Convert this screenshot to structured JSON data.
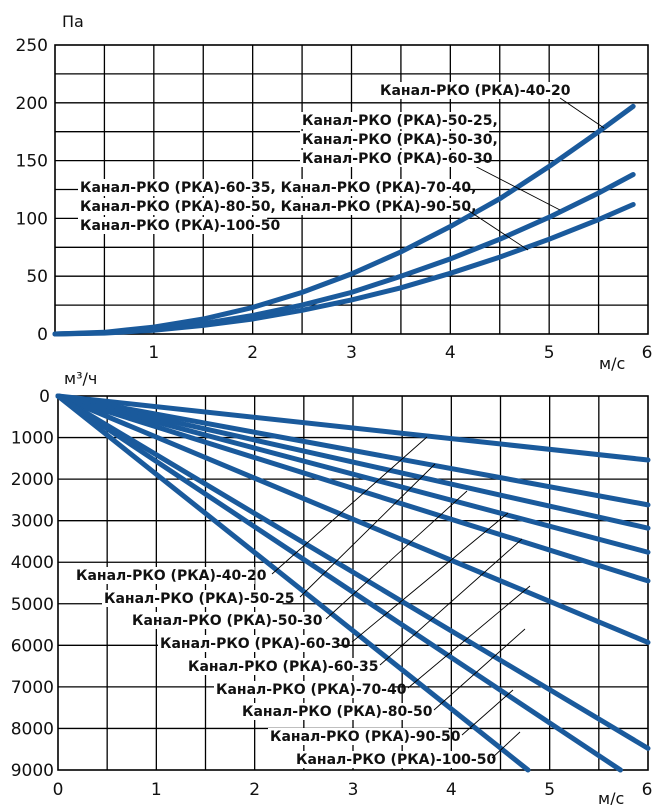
{
  "chart_data": [
    {
      "type": "line",
      "title": "",
      "ylabel": "Па",
      "xlabel": "м/с",
      "xlim": [
        0,
        6
      ],
      "ylim": [
        0,
        250
      ],
      "x_ticks": [
        "1",
        "2",
        "3",
        "4",
        "5",
        "6"
      ],
      "y_ticks": [
        "0",
        "50",
        "100",
        "150",
        "200",
        "250"
      ],
      "x": [
        0,
        0.5,
        1,
        1.5,
        2,
        2.5,
        3,
        3.5,
        4,
        4.5,
        5,
        5.5,
        5.85
      ],
      "series": [
        {
          "name": "Канал-РКО (РКА)-40-20",
          "values": [
            0,
            1.5,
            6,
            13,
            23,
            36,
            52,
            71,
            93,
            117,
            145,
            175,
            197
          ]
        },
        {
          "name": "Канал-РКО (РКА)-50-25, Канал-РКО (РКА)-50-30, Канал-РКО (РКА)-60-30",
          "values": [
            0,
            1,
            4,
            9,
            16,
            25,
            36,
            50,
            65,
            82,
            101,
            122,
            138
          ]
        },
        {
          "name": "Канал-РКО (РКА)-60-35, Канал-РКО (РКА)-70-40, Канал-РКО (РКА)-80-50, Канал-РКО (РКА)-90-50, Канал-РКО (РКА)-100-50",
          "values": [
            0,
            0.8,
            3.3,
            7.4,
            13,
            20.5,
            29.5,
            40,
            52.5,
            66.5,
            82,
            99,
            112
          ]
        }
      ],
      "labels": [
        {
          "lines": [
            "Канал-РКО (РКА)-40-20"
          ]
        },
        {
          "lines": [
            "Канал-РКО (РКА)-50-25,",
            "Канал-РКО (РКА)-50-30,",
            "Канал-РКО (РКА)-60-30"
          ]
        },
        {
          "lines": [
            "Канал-РКО (РКА)-60-35, Канал-РКО (РКА)-70-40,",
            "Канал-РКО (РКА)-80-50, Канал-РКО (РКА)-90-50,",
            "Канал-РКО (РКА)-100-50"
          ]
        }
      ]
    },
    {
      "type": "line",
      "title": "",
      "ylabel": "м³/ч",
      "xlabel": "м/с",
      "xlim": [
        0,
        6
      ],
      "ylim": [
        0,
        9000
      ],
      "y_inverted": true,
      "x_ticks": [
        "0",
        "1",
        "2",
        "3",
        "4",
        "5",
        "6"
      ],
      "y_ticks": [
        "0",
        "1000",
        "2000",
        "3000",
        "4000",
        "5000",
        "6000",
        "7000",
        "8000",
        "9000"
      ],
      "series": [
        {
          "name": "Канал-РКО (РКА)-40-20",
          "x": [
            0,
            6
          ],
          "values": [
            0,
            1540
          ]
        },
        {
          "name": "Канал-РКО (РКА)-50-25",
          "x": [
            0,
            6
          ],
          "values": [
            0,
            2620
          ]
        },
        {
          "name": "Канал-РКО (РКА)-50-30",
          "x": [
            0,
            6
          ],
          "values": [
            0,
            3180
          ]
        },
        {
          "name": "Канал-РКО (РКА)-60-30",
          "x": [
            0,
            6
          ],
          "values": [
            0,
            3760
          ]
        },
        {
          "name": "Канал-РКО (РКА)-60-35",
          "x": [
            0,
            6
          ],
          "values": [
            0,
            4450
          ]
        },
        {
          "name": "Канал-РКО (РКА)-70-40",
          "x": [
            0,
            6
          ],
          "values": [
            0,
            5930
          ]
        },
        {
          "name": "Канал-РКО (РКА)-80-50",
          "x": [
            0,
            6
          ],
          "values": [
            0,
            8480
          ]
        },
        {
          "name": "Канал-РКО (РКА)-90-50",
          "x": [
            0,
            5.72
          ],
          "values": [
            0,
            9000
          ]
        },
        {
          "name": "Канал-РКО (РКА)-100-50",
          "x": [
            0,
            4.78
          ],
          "values": [
            0,
            9000
          ]
        }
      ],
      "labels": [
        {
          "text": "Канал-РКО (РКА)-40-20"
        },
        {
          "text": "Канал-РКО (РКА)-50-25"
        },
        {
          "text": "Канал-РКО (РКА)-50-30"
        },
        {
          "text": "Канал-РКО (РКА)-60-30"
        },
        {
          "text": "Канал-РКО (РКА)-60-35"
        },
        {
          "text": "Канал-РКО (РКА)-70-40"
        },
        {
          "text": "Канал-РКО (РКА)-80-50"
        },
        {
          "text": "Канал-РКО (РКА)-90-50"
        },
        {
          "text": "Канал-РКО (РКА)-100-50"
        }
      ]
    }
  ]
}
